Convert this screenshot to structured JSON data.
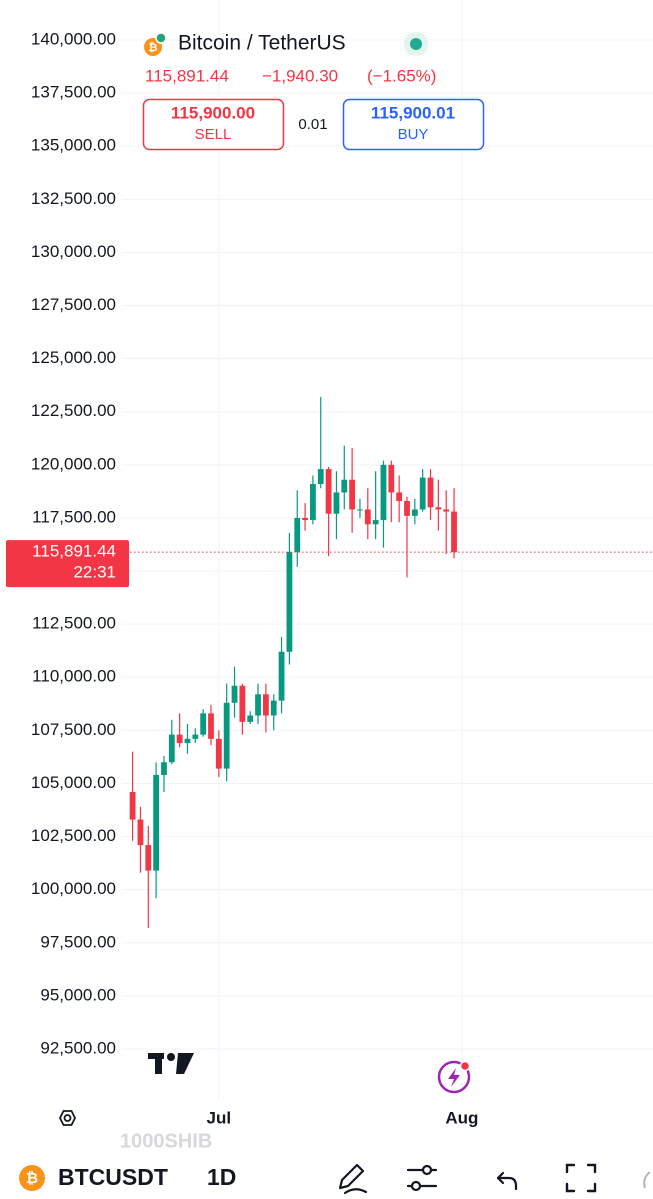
{
  "header": {
    "symbol": "Bitcoin / TetherUS",
    "price": "115,891.44",
    "change": "−1,940.30",
    "change_percent": "(−1.65%)",
    "sell_price": "115,900.00",
    "sell_label": "SELL",
    "spread": "0.01",
    "buy_price": "115,900.01",
    "buy_label": "BUY"
  },
  "chart_data": {
    "type": "candlestick",
    "categories": [
      null,
      null,
      null,
      null,
      null,
      null,
      null,
      null,
      null,
      null,
      null,
      "Jul",
      null,
      null,
      null,
      null,
      null,
      null,
      null,
      null,
      null,
      null,
      null,
      null,
      null,
      null,
      null,
      null,
      null,
      null,
      null,
      null,
      null,
      null,
      null,
      null,
      null,
      null,
      null,
      null,
      null,
      null,
      "Aug"
    ],
    "open": [
      104600,
      103300,
      102100,
      100900,
      105400,
      106000,
      107300,
      106900,
      107100,
      107300,
      108300,
      107100,
      105700,
      108800,
      109600,
      107900,
      108200,
      109200,
      108200,
      108900,
      111200,
      115900,
      117500,
      117400,
      119100,
      119800,
      117700,
      118700,
      119300,
      117900,
      117900,
      117200,
      117400,
      120000,
      118700,
      118300,
      117600,
      117900,
      119400,
      118000,
      117900,
      117800,
      null
    ],
    "high": [
      106500,
      103900,
      103000,
      106000,
      106300,
      108000,
      108300,
      107800,
      107600,
      108500,
      108700,
      107500,
      109700,
      110500,
      109700,
      108400,
      109700,
      109700,
      109200,
      111900,
      116800,
      118800,
      118200,
      119500,
      123200,
      119900,
      119700,
      120900,
      120800,
      118400,
      118900,
      119700,
      120200,
      120200,
      119500,
      118500,
      118400,
      119800,
      119800,
      119300,
      118800,
      118900,
      null
    ],
    "low": [
      102300,
      100800,
      98200,
      99600,
      104600,
      105900,
      106700,
      106400,
      106900,
      107200,
      106800,
      105300,
      105100,
      108100,
      107300,
      107800,
      107800,
      107400,
      107500,
      108300,
      110600,
      115200,
      116900,
      117200,
      118900,
      115700,
      116500,
      117900,
      116800,
      117500,
      116500,
      116500,
      116100,
      117300,
      117300,
      114700,
      117200,
      117800,
      117400,
      116900,
      115800,
      115600,
      null
    ],
    "close": [
      103300,
      102100,
      100900,
      105400,
      106000,
      107300,
      106900,
      107100,
      107300,
      108300,
      107100,
      105700,
      108800,
      109600,
      107900,
      108200,
      109200,
      108200,
      108900,
      111200,
      115900,
      117500,
      117400,
      119100,
      119800,
      117700,
      118700,
      119300,
      117900,
      117900,
      117200,
      117400,
      120000,
      118700,
      118300,
      117600,
      117900,
      119400,
      118000,
      117900,
      117800,
      115891.44,
      null
    ],
    "up_color": "#089981",
    "down_color": "#f23645",
    "ylim": [
      92500,
      140000
    ],
    "yticks": [
      {
        "value": 92500,
        "label": "92,500.00"
      },
      {
        "value": 95000,
        "label": "95,000.00"
      },
      {
        "value": 97500,
        "label": "97,500.00"
      },
      {
        "value": 100000,
        "label": "100,000.00"
      },
      {
        "value": 102500,
        "label": "102,500.00"
      },
      {
        "value": 105000,
        "label": "105,000.00"
      },
      {
        "value": 107500,
        "label": "107,500.00"
      },
      {
        "value": 110000,
        "label": "110,000.00"
      },
      {
        "value": 112500,
        "label": "112,500.00"
      },
      {
        "value": 115000,
        "label": "115,000.00"
      },
      {
        "value": 117500,
        "label": "117,500.00"
      },
      {
        "value": 120000,
        "label": "120,000.00"
      },
      {
        "value": 122500,
        "label": "122,500.00"
      },
      {
        "value": 125000,
        "label": "125,000.00"
      },
      {
        "value": 127500,
        "label": "127,500.00"
      },
      {
        "value": 130000,
        "label": "130,000.00"
      },
      {
        "value": 132500,
        "label": "132,500.00"
      },
      {
        "value": 135000,
        "label": "135,000.00"
      },
      {
        "value": 137500,
        "label": "137,500.00"
      },
      {
        "value": 140000,
        "label": "140,000.00"
      }
    ],
    "grid": true,
    "last_price": {
      "value": 115891.44,
      "label": "115,891.44"
    },
    "countdown": "22:31"
  },
  "watermark": "1000SHIB",
  "toolbar": {
    "symbol": "BTCUSDT",
    "interval": "1D"
  }
}
